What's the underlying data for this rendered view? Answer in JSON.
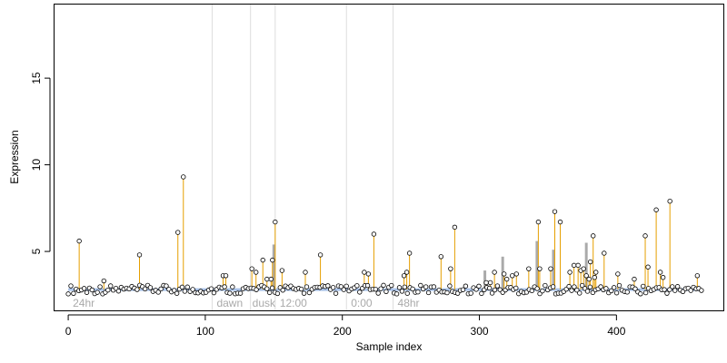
{
  "chart_data": {
    "type": "scatter",
    "xlabel": "Sample index",
    "ylabel": "Expression",
    "xlim": [
      -10,
      478
    ],
    "ylim": [
      1.6,
      19.3
    ],
    "xticks": [
      0,
      100,
      200,
      300,
      400
    ],
    "yticks": [
      5,
      10,
      15
    ],
    "baseline": 2.8,
    "region_boundaries": [
      105,
      133,
      151,
      203,
      237
    ],
    "region_labels": [
      {
        "x": 2,
        "label": "24hr"
      },
      {
        "x": 107,
        "label": "dawn"
      },
      {
        "x": 133,
        "label": "dusk"
      },
      {
        "x": 153,
        "label": "12:00"
      },
      {
        "x": 205,
        "label": "0:00"
      },
      {
        "x": 239,
        "label": "48hr"
      }
    ],
    "colors": {
      "stem": "#e69f00",
      "grey_bar": "#aaaaaa",
      "blue_band": "#a9c2e8",
      "region_line": "#dddddd",
      "region_text": "#aaaaaa"
    },
    "grey_bars": [
      {
        "x": 150,
        "y": 5.4
      },
      {
        "x": 304,
        "y": 3.9
      },
      {
        "x": 317,
        "y": 4.7
      },
      {
        "x": 342,
        "y": 5.6
      },
      {
        "x": 354,
        "y": 5.1
      },
      {
        "x": 378,
        "y": 5.5
      }
    ],
    "peaks": [
      {
        "x": 8,
        "y": 5.6
      },
      {
        "x": 26,
        "y": 3.3
      },
      {
        "x": 52,
        "y": 4.8
      },
      {
        "x": 80,
        "y": 6.1
      },
      {
        "x": 84,
        "y": 9.3
      },
      {
        "x": 113,
        "y": 3.6
      },
      {
        "x": 115,
        "y": 3.6
      },
      {
        "x": 134,
        "y": 4.0
      },
      {
        "x": 137,
        "y": 3.8
      },
      {
        "x": 142,
        "y": 4.5
      },
      {
        "x": 145,
        "y": 3.4
      },
      {
        "x": 148,
        "y": 3.4
      },
      {
        "x": 149,
        "y": 4.5
      },
      {
        "x": 151,
        "y": 6.7
      },
      {
        "x": 156,
        "y": 3.9
      },
      {
        "x": 173,
        "y": 3.8
      },
      {
        "x": 184,
        "y": 4.8
      },
      {
        "x": 216,
        "y": 3.8
      },
      {
        "x": 219,
        "y": 3.7
      },
      {
        "x": 223,
        "y": 6.0
      },
      {
        "x": 245,
        "y": 3.6
      },
      {
        "x": 247,
        "y": 3.8
      },
      {
        "x": 249,
        "y": 4.9
      },
      {
        "x": 272,
        "y": 4.7
      },
      {
        "x": 279,
        "y": 4.0
      },
      {
        "x": 282,
        "y": 6.4
      },
      {
        "x": 305,
        "y": 3.2
      },
      {
        "x": 308,
        "y": 3.2
      },
      {
        "x": 311,
        "y": 3.8
      },
      {
        "x": 318,
        "y": 3.7
      },
      {
        "x": 320,
        "y": 3.4
      },
      {
        "x": 324,
        "y": 3.6
      },
      {
        "x": 327,
        "y": 3.7
      },
      {
        "x": 336,
        "y": 4.0
      },
      {
        "x": 343,
        "y": 6.7
      },
      {
        "x": 344,
        "y": 4.0
      },
      {
        "x": 352,
        "y": 4.0
      },
      {
        "x": 355,
        "y": 7.3
      },
      {
        "x": 359,
        "y": 6.7
      },
      {
        "x": 366,
        "y": 3.8
      },
      {
        "x": 369,
        "y": 4.2
      },
      {
        "x": 372,
        "y": 4.2
      },
      {
        "x": 374,
        "y": 3.9
      },
      {
        "x": 376,
        "y": 4.0
      },
      {
        "x": 378,
        "y": 3.6
      },
      {
        "x": 380,
        "y": 3.4
      },
      {
        "x": 381,
        "y": 4.4
      },
      {
        "x": 383,
        "y": 5.9
      },
      {
        "x": 384,
        "y": 3.5
      },
      {
        "x": 385,
        "y": 3.8
      },
      {
        "x": 391,
        "y": 4.9
      },
      {
        "x": 401,
        "y": 3.7
      },
      {
        "x": 413,
        "y": 3.4
      },
      {
        "x": 421,
        "y": 5.9
      },
      {
        "x": 423,
        "y": 4.1
      },
      {
        "x": 429,
        "y": 7.4
      },
      {
        "x": 432,
        "y": 3.8
      },
      {
        "x": 434,
        "y": 3.5
      },
      {
        "x": 439,
        "y": 7.9
      },
      {
        "x": 459,
        "y": 3.6
      }
    ],
    "baseline_points": {
      "x_start": 0,
      "x_end": 462,
      "count": 240,
      "ymin": 2.55,
      "ymax": 3.05
    }
  }
}
